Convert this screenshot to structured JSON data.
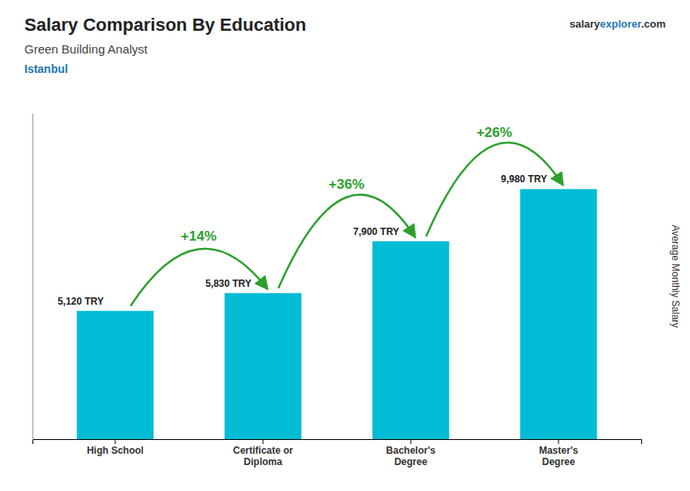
{
  "chart_data": {
    "type": "bar",
    "title": "Salary Comparison By Education",
    "subtitle": "Green Building Analyst",
    "location": "Istanbul",
    "source": [
      "salary",
      "explorer",
      ".com"
    ],
    "y_label": "Average Monthly Salary",
    "categories": [
      "High School",
      "Certificate or\nDiploma",
      "Bachelor's\nDegree",
      "Master's\nDegree"
    ],
    "values": [
      5120,
      5830,
      7900,
      9980
    ],
    "value_labels": [
      "5,120 TRY",
      "5,830 TRY",
      "7,900 TRY",
      "9,980 TRY"
    ],
    "data_labels": true,
    "annotations": [
      "+14%",
      "+36%",
      "+26%"
    ],
    "color": "#00bcd4",
    "ylim": [
      0,
      13000
    ],
    "tick_labels": "x",
    "grid": false
  }
}
